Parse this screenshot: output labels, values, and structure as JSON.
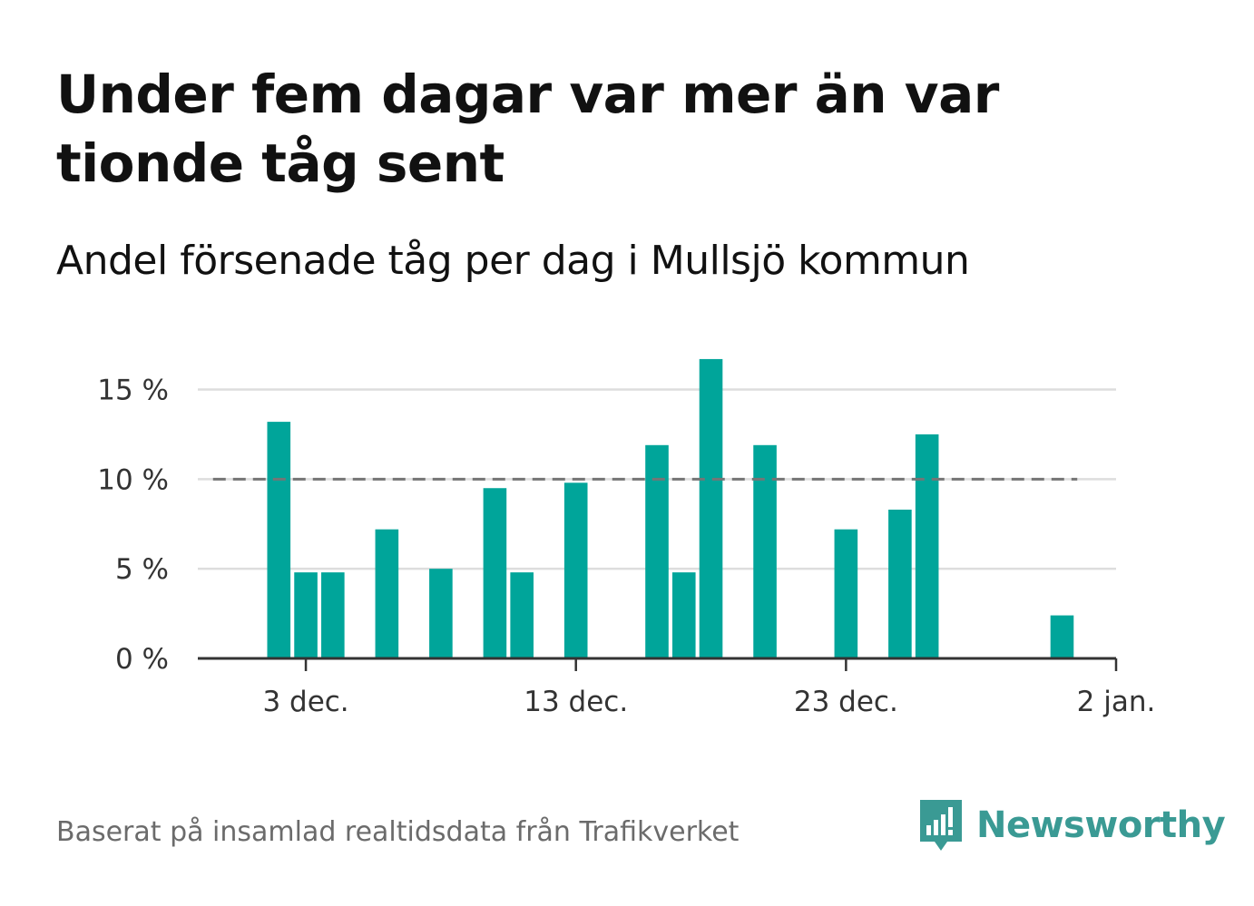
{
  "header": {
    "title": "Under fem dagar var mer än var tionde tåg sent",
    "subtitle": "Andel försenade tåg per dag i Mullsjö kommun"
  },
  "footer": {
    "source": "Baserat på insamlad realtidsdata från Trafikverket",
    "brand": "Newsworthy"
  },
  "colors": {
    "bar": "#00a59a",
    "reference_line": "#757575",
    "grid": "#dddddd",
    "axis": "#333333",
    "brand": "#3a9a94"
  },
  "chart_data": {
    "type": "bar",
    "title": "Andel försenade tåg per dag i Mullsjö kommun",
    "xlabel": "",
    "ylabel": "",
    "x_axis_type": "date",
    "xlim": [
      "2023-11-29",
      "2024-01-02"
    ],
    "x_ticks": [
      "2023-12-03",
      "2023-12-13",
      "2023-12-23",
      "2024-01-02"
    ],
    "x_tick_labels": [
      "3 dec.",
      "13 dec.",
      "23 dec.",
      "2 jan."
    ],
    "ylim": [
      0,
      17
    ],
    "y_ticks": [
      0,
      5,
      10,
      15
    ],
    "y_tick_labels": [
      "0 %",
      "5 %",
      "10 %",
      "15 %"
    ],
    "grid": true,
    "reference_line": {
      "y": 10,
      "x_start": "2023-11-30",
      "x_end": "2024-01-01",
      "style": "dashed"
    },
    "series": [
      {
        "points": [
          {
            "x": "2023-12-02",
            "y": 13.2
          },
          {
            "x": "2023-12-03",
            "y": 4.8
          },
          {
            "x": "2023-12-04",
            "y": 4.8
          },
          {
            "x": "2023-12-06",
            "y": 7.2
          },
          {
            "x": "2023-12-08",
            "y": 5.0
          },
          {
            "x": "2023-12-10",
            "y": 9.5
          },
          {
            "x": "2023-12-11",
            "y": 4.8
          },
          {
            "x": "2023-12-13",
            "y": 9.8
          },
          {
            "x": "2023-12-16",
            "y": 11.9
          },
          {
            "x": "2023-12-17",
            "y": 4.8
          },
          {
            "x": "2023-12-18",
            "y": 16.7
          },
          {
            "x": "2023-12-20",
            "y": 11.9
          },
          {
            "x": "2023-12-23",
            "y": 7.2
          },
          {
            "x": "2023-12-25",
            "y": 8.3
          },
          {
            "x": "2023-12-26",
            "y": 12.5
          },
          {
            "x": "2023-12-31",
            "y": 2.4
          }
        ]
      }
    ]
  }
}
